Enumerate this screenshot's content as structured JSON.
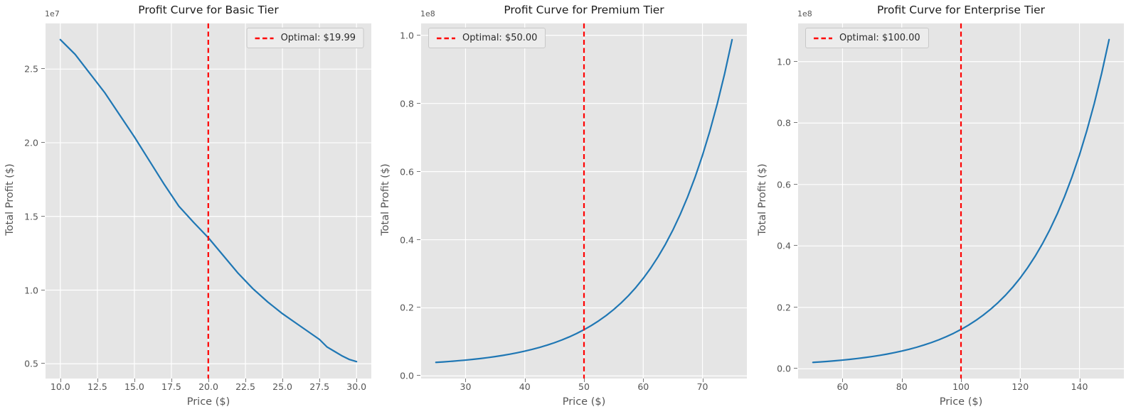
{
  "figure": {
    "background": "#ffffff",
    "plot_background": "#e5e5e5",
    "grid_color": "#ffffff",
    "tick_label_color": "#555555",
    "title_color": "#1c1c1c"
  },
  "chart_data": [
    {
      "type": "line",
      "title": "Profit Curve for Basic Tier",
      "xlabel": "Price ($)",
      "ylabel": "Total Profit ($)",
      "y_offset_label": "1e7",
      "legend": {
        "label": "Optimal: $19.99",
        "position": "upper right"
      },
      "optimal_price": 19.99,
      "line_color": "#1f77b4",
      "optimal_line_color": "#ff0000",
      "grid": true,
      "xlim": [
        9,
        31
      ],
      "ylim": [
        0.4,
        2.81
      ],
      "x_ticks": {
        "values": [
          10,
          12.5,
          15,
          17.5,
          20,
          22.5,
          25,
          27.5,
          30
        ],
        "labels": [
          "10.0",
          "12.5",
          "15.0",
          "17.5",
          "20.0",
          "22.5",
          "25.0",
          "27.5",
          "30.0"
        ]
      },
      "y_ticks": {
        "values": [
          0.5,
          1.0,
          1.5,
          2.0,
          2.5
        ],
        "labels": [
          "0.5",
          "1.0",
          "1.5",
          "2.0",
          "2.5"
        ]
      },
      "series": {
        "x": [
          10,
          11,
          12,
          13,
          14,
          15,
          16,
          17,
          18,
          19,
          20,
          21,
          22,
          23,
          24,
          25,
          26,
          27,
          27.5,
          28,
          28.5,
          29,
          29.5,
          30
        ],
        "y": [
          2.7,
          2.6,
          2.47,
          2.34,
          2.19,
          2.04,
          1.88,
          1.72,
          1.57,
          1.46,
          1.355,
          1.235,
          1.115,
          1.01,
          0.92,
          0.84,
          0.77,
          0.7,
          0.665,
          0.615,
          0.585,
          0.555,
          0.53,
          0.515
        ]
      }
    },
    {
      "type": "line",
      "title": "Profit Curve for Premium Tier",
      "xlabel": "Price ($)",
      "ylabel": "Total Profit ($)",
      "y_offset_label": "1e8",
      "legend": {
        "label": "Optimal: $50.00",
        "position": "upper left"
      },
      "optimal_price": 50,
      "line_color": "#1f77b4",
      "optimal_line_color": "#ff0000",
      "grid": true,
      "xlim": [
        22.5,
        77.5
      ],
      "ylim": [
        -0.0075,
        1.035
      ],
      "x_ticks": {
        "values": [
          30,
          40,
          50,
          60,
          70
        ],
        "labels": [
          "30",
          "40",
          "50",
          "60",
          "70"
        ]
      },
      "y_ticks": {
        "values": [
          0.0,
          0.2,
          0.4,
          0.6,
          0.8,
          1.0
        ],
        "labels": [
          "0.0",
          "0.2",
          "0.4",
          "0.6",
          "0.8",
          "1.0"
        ]
      },
      "series": {
        "x": [
          25,
          26.25,
          27.5,
          28.75,
          30,
          31.25,
          32.5,
          33.75,
          35,
          36.25,
          37.5,
          38.75,
          40,
          41.25,
          42.5,
          43.75,
          45,
          46.25,
          47.5,
          48.75,
          50,
          51.25,
          52.5,
          53.75,
          55,
          56.25,
          57.5,
          58.75,
          60,
          61.25,
          62.5,
          63.75,
          65,
          66.25,
          67.5,
          68.75,
          70,
          71.25,
          72.5,
          73.75,
          75
        ],
        "y": [
          0.0399,
          0.0413,
          0.0429,
          0.0447,
          0.0466,
          0.0488,
          0.0512,
          0.0539,
          0.0569,
          0.0603,
          0.064,
          0.0682,
          0.0729,
          0.0781,
          0.0839,
          0.0903,
          0.0975,
          0.1056,
          0.1146,
          0.1246,
          0.1358,
          0.1482,
          0.1621,
          0.1776,
          0.1949,
          0.2142,
          0.2357,
          0.2597,
          0.2865,
          0.3163,
          0.3497,
          0.3868,
          0.4282,
          0.4745,
          0.526,
          0.5835,
          0.6477,
          0.7191,
          0.7991,
          0.8881,
          0.9874
        ]
      }
    },
    {
      "type": "line",
      "title": "Profit Curve for Enterprise Tier",
      "xlabel": "Price ($)",
      "ylabel": "Total Profit ($)",
      "y_offset_label": "1e8",
      "legend": {
        "label": "Optimal: $100.00",
        "position": "upper left"
      },
      "optimal_price": 100,
      "line_color": "#1f77b4",
      "optimal_line_color": "#ff0000",
      "grid": true,
      "xlim": [
        45,
        155
      ],
      "ylim": [
        -0.0315,
        1.1242
      ],
      "x_ticks": {
        "values": [
          60,
          80,
          100,
          120,
          140
        ],
        "labels": [
          "60",
          "80",
          "100",
          "120",
          "140"
        ]
      },
      "y_ticks": {
        "values": [
          0.0,
          0.2,
          0.4,
          0.6,
          0.8,
          1.0
        ],
        "labels": [
          "0.0",
          "0.2",
          "0.4",
          "0.6",
          "0.8",
          "1.0"
        ]
      },
      "series": {
        "x": [
          50,
          52.5,
          55,
          57.5,
          60,
          62.5,
          65,
          67.5,
          70,
          72.5,
          75,
          77.5,
          80,
          82.5,
          85,
          87.5,
          90,
          92.5,
          95,
          97.5,
          100,
          102.5,
          105,
          107.5,
          110,
          112.5,
          115,
          117.5,
          120,
          122.5,
          125,
          127.5,
          130,
          132.5,
          135,
          137.5,
          140,
          142.5,
          145,
          147.5,
          150
        ],
        "y": [
          0.021,
          0.0226,
          0.0243,
          0.0263,
          0.0285,
          0.0309,
          0.0336,
          0.0367,
          0.04,
          0.0438,
          0.048,
          0.0527,
          0.0579,
          0.0637,
          0.0702,
          0.0775,
          0.0855,
          0.0945,
          0.1045,
          0.1157,
          0.1282,
          0.142,
          0.1575,
          0.1748,
          0.194,
          0.2155,
          0.2394,
          0.2661,
          0.2958,
          0.329,
          0.366,
          0.4072,
          0.4531,
          0.5044,
          0.5615,
          0.6252,
          0.6962,
          0.7756,
          0.8636,
          0.962,
          1.0717
        ]
      }
    }
  ]
}
